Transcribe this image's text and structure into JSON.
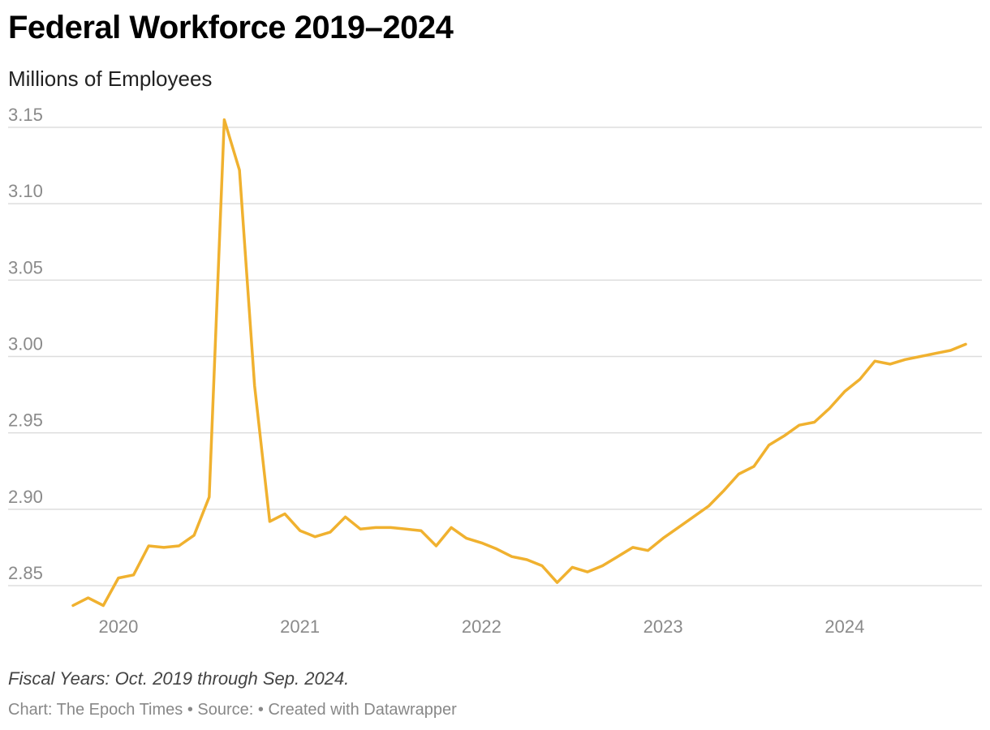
{
  "header": {
    "title": "Federal Workforce 2019–2024",
    "subtitle": "Millions of Employees"
  },
  "footer": {
    "notes": "Fiscal Years: Oct. 2019 through Sep. 2024.",
    "chart_credit": "Chart: The Epoch Times",
    "source": "• Source: ",
    "made_with": "• Created with Datawrapper"
  },
  "chart_data": {
    "type": "line",
    "title": "Federal Workforce 2019–2024",
    "subtitle": "Millions of Employees",
    "xlabel": "",
    "ylabel": "",
    "x_start": "2019-10",
    "x_tick_labels": [
      "2020",
      "2021",
      "2022",
      "2023",
      "2024"
    ],
    "y_tick_labels": [
      "3.15",
      "3.10",
      "3.05",
      "3.00",
      "2.95",
      "2.90",
      "2.85"
    ],
    "y_ticks": [
      3.15,
      3.1,
      3.05,
      3.0,
      2.95,
      2.9,
      2.85
    ],
    "ylim": [
      2.83,
      3.16
    ],
    "grid": "horizontal",
    "color": "#f0b12f",
    "series": [
      {
        "x": [
          "2019-10",
          "2019-11",
          "2019-12",
          "2020-01",
          "2020-02",
          "2020-03",
          "2020-04",
          "2020-05",
          "2020-06",
          "2020-07",
          "2020-08",
          "2020-09",
          "2020-10",
          "2020-11",
          "2020-12",
          "2021-01",
          "2021-02",
          "2021-03",
          "2021-04",
          "2021-05",
          "2021-06",
          "2021-07",
          "2021-08",
          "2021-09",
          "2021-10",
          "2021-11",
          "2021-12",
          "2022-01",
          "2022-02",
          "2022-03",
          "2022-04",
          "2022-05",
          "2022-06",
          "2022-07",
          "2022-08",
          "2022-09",
          "2022-10",
          "2022-11",
          "2022-12",
          "2023-01",
          "2023-02",
          "2023-03",
          "2023-04",
          "2023-05",
          "2023-06",
          "2023-07",
          "2023-08",
          "2023-09",
          "2023-10",
          "2023-11",
          "2023-12",
          "2024-01",
          "2024-02",
          "2024-03",
          "2024-04",
          "2024-05",
          "2024-06",
          "2024-07",
          "2024-08",
          "2024-09"
        ],
        "values": [
          2.837,
          2.842,
          2.837,
          2.855,
          2.857,
          2.876,
          2.875,
          2.876,
          2.883,
          2.908,
          3.155,
          3.122,
          2.981,
          2.892,
          2.897,
          2.886,
          2.882,
          2.885,
          2.895,
          2.887,
          2.888,
          2.888,
          2.887,
          2.886,
          2.876,
          2.888,
          2.881,
          2.878,
          2.874,
          2.869,
          2.867,
          2.863,
          2.852,
          2.862,
          2.859,
          2.863,
          2.869,
          2.875,
          2.873,
          2.881,
          2.888,
          2.895,
          2.902,
          2.912,
          2.923,
          2.928,
          2.942,
          2.948,
          2.955,
          2.957,
          2.966,
          2.977,
          2.985,
          2.997,
          2.995,
          2.998,
          3.0,
          3.002,
          3.004,
          3.008
        ]
      }
    ]
  }
}
